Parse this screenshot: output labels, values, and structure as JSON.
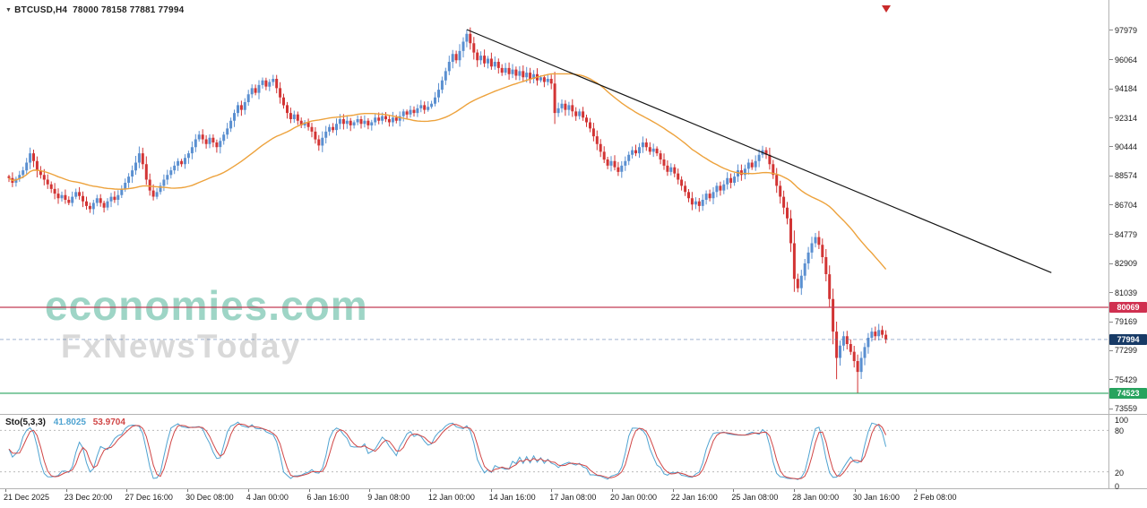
{
  "header": {
    "dropdown_icon": "▼",
    "symbol": "BTCUSD,H4",
    "ohlc": "78000 78158 77881 77994"
  },
  "watermark": {
    "brand": "economies.com",
    "sub": "FxNewsToday"
  },
  "colors": {
    "candle_up": "#5a8fd0",
    "candle_down": "#d23434",
    "moving_average": "#eda23c",
    "trendline": "#151515",
    "resistance_line": "#c23b55",
    "resistance_badge": "#d03050",
    "support_line": "#27a35e",
    "support_badge": "#27a35e",
    "current_badge": "#173a66",
    "current_line": "#5577aa",
    "sto_main": "#4fa3d1",
    "sto_signal": "#d04545",
    "sto_level": "#bbbbbb"
  },
  "chart_data": {
    "type": "candlestick",
    "symbol": "BTCUSD",
    "timeframe": "H4",
    "title": "BTCUSD H4 chart with SMA, descending trendline, horizontal levels and Stochastic oscillator",
    "ylim": [
      73559,
      97979
    ],
    "price_ticks": [
      "97979",
      "96064",
      "94184",
      "92314",
      "90444",
      "88574",
      "86704",
      "84779",
      "82909",
      "81039",
      "79169",
      "77299",
      "75429",
      "73559"
    ],
    "time_labels": [
      "21 Dec 2025",
      "23 Dec 20:00",
      "27 Dec 16:00",
      "30 Dec 08:00",
      "4 Jan 00:00",
      "6 Jan 16:00",
      "9 Jan 08:00",
      "12 Jan 00:00",
      "14 Jan 16:00",
      "17 Jan 08:00",
      "20 Jan 00:00",
      "22 Jan 16:00",
      "25 Jan 08:00",
      "28 Jan 00:00",
      "30 Jan 16:00",
      "2 Feb 08:00"
    ],
    "closes": [
      88400,
      88100,
      88350,
      88600,
      88900,
      89400,
      90000,
      89500,
      88900,
      88600,
      88300,
      88000,
      87700,
      87400,
      87100,
      87300,
      87000,
      86800,
      87200,
      87500,
      87250,
      86900,
      86600,
      86400,
      86800,
      87100,
      86800,
      86500,
      86900,
      87200,
      87000,
      87300,
      87700,
      88100,
      88500,
      88900,
      89400,
      90000,
      89300,
      88300,
      87600,
      87200,
      87500,
      87900,
      88300,
      88600,
      88900,
      89200,
      89500,
      89300,
      89700,
      90000,
      90400,
      90900,
      91200,
      90900,
      90600,
      91000,
      90700,
      90400,
      90800,
      91200,
      91600,
      92100,
      92600,
      93100,
      92800,
      93300,
      93800,
      94200,
      93900,
      94400,
      94700,
      94300,
      94600,
      94800,
      94200,
      93600,
      93100,
      92600,
      92200,
      92500,
      92100,
      91800,
      92000,
      91700,
      91400,
      90900,
      90500,
      91000,
      91400,
      91700,
      91500,
      91900,
      92200,
      91900,
      92100,
      91800,
      92000,
      92200,
      91900,
      92100,
      91800,
      92000,
      92300,
      92100,
      92400,
      92200,
      92000,
      92300,
      92100,
      92400,
      92700,
      92500,
      92800,
      92600,
      92900,
      93100,
      92800,
      93000,
      93200,
      93600,
      94100,
      94700,
      95300,
      95900,
      96400,
      96000,
      96600,
      97200,
      97700,
      97100,
      96500,
      96000,
      96300,
      95800,
      96100,
      95600,
      95900,
      95500,
      95200,
      95500,
      95100,
      95400,
      95000,
      95300,
      94900,
      95200,
      94800,
      95100,
      94700,
      94900,
      94600,
      94800,
      94500,
      92600,
      92900,
      93200,
      92800,
      93100,
      92700,
      92400,
      92700,
      92300,
      92000,
      91600,
      91100,
      90600,
      90100,
      89600,
      89200,
      89500,
      89100,
      88800,
      89200,
      89500,
      89900,
      90200,
      90000,
      90400,
      90700,
      90400,
      90100,
      90300,
      90000,
      89600,
      89200,
      88800,
      89100,
      88700,
      88300,
      87900,
      87500,
      87100,
      86700,
      86900,
      86600,
      87000,
      87400,
      87100,
      87500,
      87900,
      87600,
      88000,
      88400,
      88100,
      88500,
      88900,
      88600,
      89000,
      89400,
      89100,
      89500,
      89900,
      90200,
      89900,
      89300,
      88600,
      87900,
      87200,
      86500,
      85800,
      84200,
      81900,
      81300,
      82100,
      82900,
      83600,
      84200,
      84600,
      84100,
      83300,
      82200,
      80600,
      78500,
      76800,
      77600,
      78200,
      77700,
      77200,
      76600,
      75900,
      76800,
      77500,
      78100,
      78500,
      78200,
      78600,
      78300,
      77994
    ],
    "special": {
      "peak_high": 97979,
      "crash_wick_low": 75429,
      "final_wick_low": 74550
    },
    "moving_average": {
      "type": "SMA",
      "period": 40
    },
    "trendline": {
      "start_index": 130,
      "start_price": 97979,
      "end_index": 296,
      "end_price": 82300
    },
    "levels": {
      "resistance": {
        "price": 80069,
        "label": "80069"
      },
      "current": {
        "price": 77994,
        "label": "77994"
      },
      "support": {
        "price": 74523,
        "label": "74523"
      }
    },
    "oscillator": {
      "name": "Sto(5,3,3)",
      "k": 5,
      "slowing": 3,
      "d": 3,
      "main_value": "41.8025",
      "signal_value": "53.9704",
      "axis_ticks": [
        "100",
        "80",
        "20",
        "0"
      ],
      "levels": [
        80,
        20
      ]
    }
  }
}
